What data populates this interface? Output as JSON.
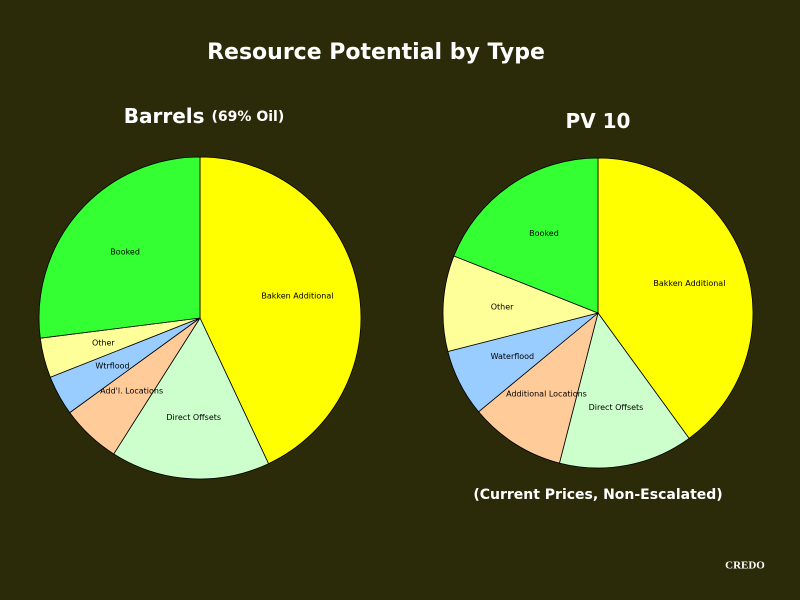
{
  "title": "Resource Potential by Type",
  "logo": "CREDO",
  "chart_data": [
    {
      "type": "pie",
      "title": "Barrels",
      "title_note": "(69% Oil)",
      "categories": [
        "Bakken Additional",
        "Direct Offsets",
        "Add'l. Locations",
        "Wtrflood",
        "Other",
        "Booked"
      ],
      "values": [
        43,
        16,
        6,
        4,
        4,
        27
      ],
      "colors": [
        "#ffff00",
        "#ccffcc",
        "#ffcc99",
        "#99ccff",
        "#ffff99",
        "#33ff33"
      ]
    },
    {
      "type": "pie",
      "title": "PV 10",
      "note": "(Current Prices, Non-Escalated)",
      "categories": [
        "Bakken Additional",
        "Direct Offsets",
        "Additional Locations",
        "Waterflood",
        "Other",
        "Booked"
      ],
      "values": [
        40,
        14,
        10,
        7,
        10,
        19
      ],
      "colors": [
        "#ffff00",
        "#ccffcc",
        "#ffcc99",
        "#99ccff",
        "#ffff99",
        "#33ff33"
      ]
    }
  ]
}
